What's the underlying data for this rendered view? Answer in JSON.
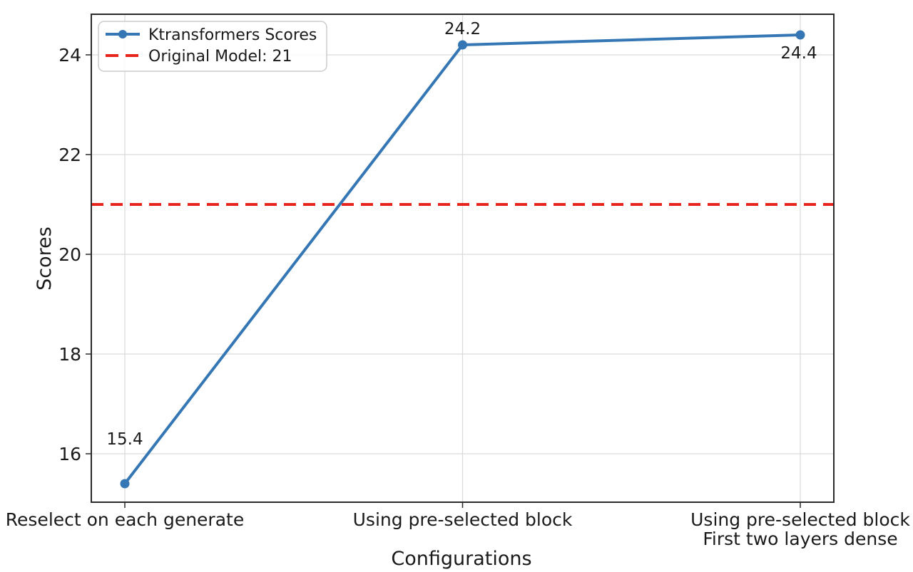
{
  "chart_data": {
    "type": "line",
    "title": "",
    "xlabel": "Configurations",
    "ylabel": "Scores",
    "categories": [
      "Reselect on each generate",
      "Using pre-selected block",
      "Using pre-selected block\nFirst two layers dense"
    ],
    "series": [
      {
        "name": "Ktransformers Scores",
        "values": [
          15.4,
          24.2,
          24.4
        ],
        "color": "#3577b4",
        "line_style": "solid",
        "marker": "circle"
      }
    ],
    "reference_line": {
      "label": "Original Model: 21",
      "value": 21,
      "color": "#e8251c",
      "line_style": "dashed"
    },
    "point_labels": [
      "15.4",
      "24.2",
      "24.4"
    ],
    "y_ticks": [
      16,
      18,
      20,
      22,
      24
    ],
    "ylim": [
      15.03,
      24.81
    ],
    "grid": true,
    "legend_position": "upper left",
    "legend_items": [
      "Ktransformers Scores",
      "Original Model: 21"
    ]
  },
  "colors": {
    "series_blue": "#3577b4",
    "reference_red": "#e8251c",
    "grid": "#d9d9d9",
    "spine": "#2a2a2a",
    "text": "#1a1a1a",
    "legend_border": "#cccccc",
    "background": "#ffffff"
  }
}
